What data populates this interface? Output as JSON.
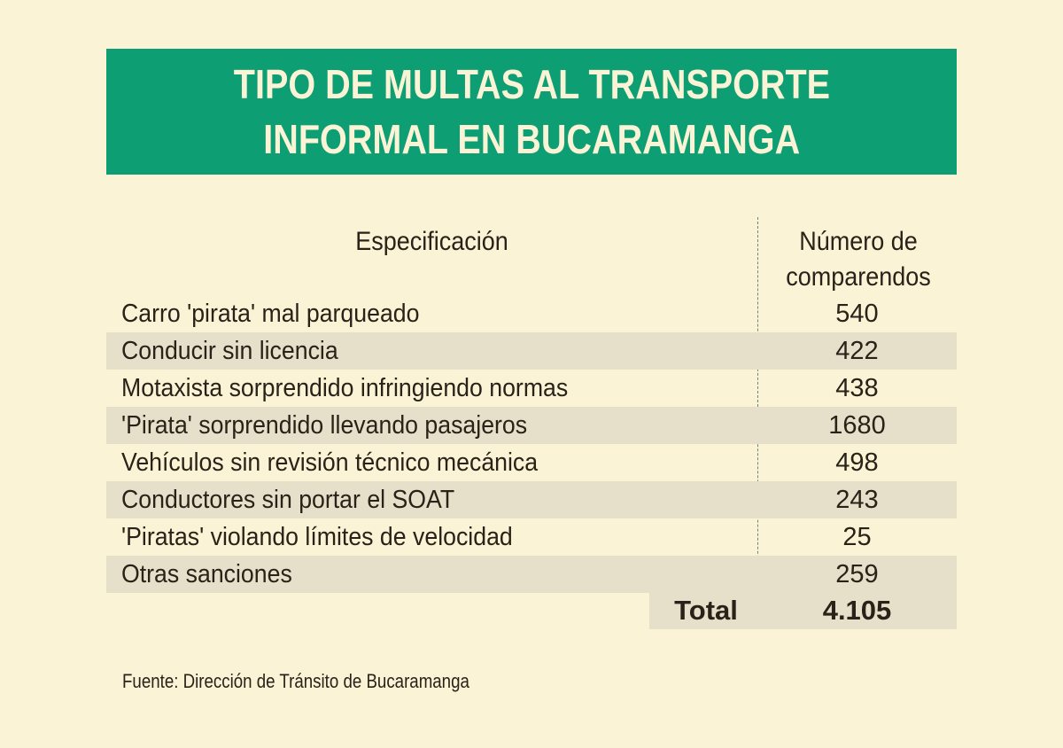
{
  "title_lines": [
    "TIPO DE MULTAS AL TRANSPORTE",
    "INFORMAL EN BUCARAMANGA"
  ],
  "headers": {
    "spec": "Especificación",
    "num_line1": "Número de",
    "num_line2": "comparendos"
  },
  "chart_data": {
    "type": "table",
    "title": "TIPO DE MULTAS AL TRANSPORTE INFORMAL EN BUCARAMANGA",
    "columns": [
      "Especificación",
      "Número de comparendos"
    ],
    "rows": [
      {
        "label": "Carro 'pirata' mal parqueado",
        "value": "540"
      },
      {
        "label": "Conducir sin licencia",
        "value": "422"
      },
      {
        "label": "Motaxista sorprendido infringiendo normas",
        "value": "438"
      },
      {
        "label": "'Pirata' sorprendido llevando pasajeros",
        "value": "1680"
      },
      {
        "label": "Vehículos sin revisión técnico mecánica",
        "value": "498"
      },
      {
        "label": "Conductores sin portar el SOAT",
        "value": "243"
      },
      {
        "label": "'Piratas' violando límites de velocidad",
        "value": "25"
      },
      {
        "label": "Otras sanciones",
        "value": "259"
      }
    ],
    "total": {
      "label": "Total",
      "value": "4.105"
    }
  },
  "source": "Fuente: Dirección de Tránsito de Bucaramanga",
  "colors": {
    "banner": "#0e9e73",
    "background": "#fbf3d6",
    "row_alt": "#e6dfca"
  }
}
